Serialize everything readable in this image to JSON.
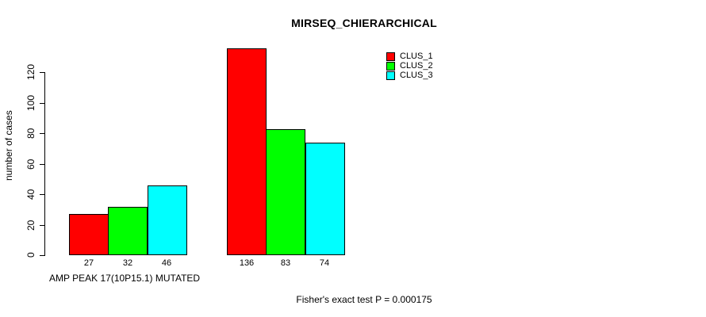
{
  "chart_data": {
    "type": "bar",
    "title": "MIRSEQ_CHIERARCHICAL",
    "ylabel": "number of cases",
    "xlabel": "",
    "categories": [
      "AMP PEAK 17(10P15.1) MUTATED",
      ""
    ],
    "series": [
      {
        "name": "CLUS_1",
        "color": "#ff0000",
        "values": [
          27,
          136
        ]
      },
      {
        "name": "CLUS_2",
        "color": "#00ff00",
        "values": [
          32,
          83
        ]
      },
      {
        "name": "CLUS_3",
        "color": "#00ffff",
        "values": [
          46,
          74
        ]
      }
    ],
    "yticks": [
      0,
      20,
      40,
      60,
      80,
      100,
      120
    ],
    "ylim": [
      0,
      136
    ],
    "grid": false,
    "bar_value_labels_shown": true,
    "legend_position": "top-right",
    "annotation": "Fisher's exact test P = 0.000175"
  }
}
